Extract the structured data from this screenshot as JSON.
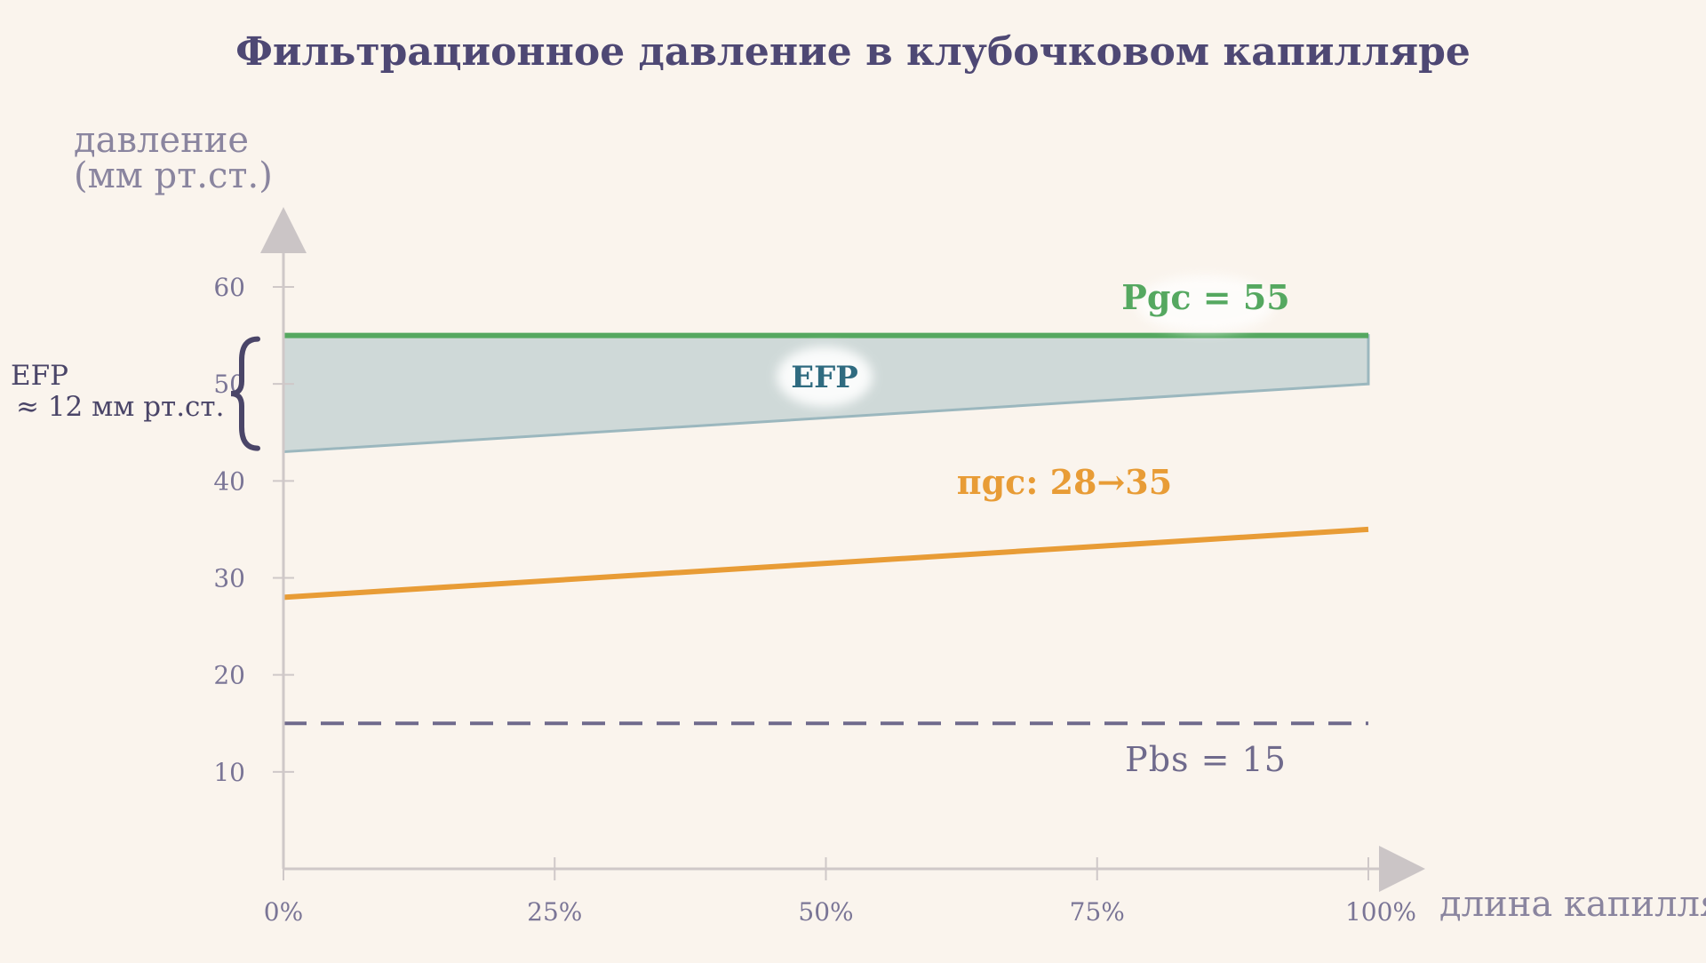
{
  "chart_data": {
    "type": "line",
    "title": "Фильтрационное давление в клубочковом капилляре",
    "ylabel_line1": "давление",
    "ylabel_line2": "(мм рт.ст.)",
    "xlabel": "длина капилляра",
    "x_ticks": [
      "0%",
      "25%",
      "50%",
      "75%",
      "100%"
    ],
    "y_ticks": [
      10,
      20,
      30,
      40,
      50,
      60
    ],
    "ylim": [
      0,
      60
    ],
    "xlim": [
      0,
      100
    ],
    "grid": false,
    "series": [
      {
        "key": "pgc",
        "label": "Pgc = 55",
        "x": [
          0,
          100
        ],
        "y": [
          55,
          55
        ],
        "color": "#55a860",
        "style": "solid"
      },
      {
        "key": "pigc",
        "label": "πgc: 28→35",
        "x": [
          0,
          100
        ],
        "y": [
          28,
          35
        ],
        "color": "#e89c36",
        "style": "solid"
      },
      {
        "key": "pbs",
        "label": "Pbs = 15",
        "x": [
          0,
          100
        ],
        "y": [
          15,
          15
        ],
        "color": "#6f6a8c",
        "style": "dashed"
      }
    ],
    "efp_band": {
      "label": "EFP",
      "upper_y": [
        55,
        55
      ],
      "lower_y": [
        43,
        50
      ],
      "x": [
        0,
        100
      ],
      "fill": "#b5c8cc",
      "border": "#9bb7be",
      "text_color": "#2f6b80"
    },
    "bracket_annotation": {
      "line1": "EFP",
      "line2": "≈ 12 мм рт.ст.",
      "y_range": [
        43,
        55
      ],
      "color": "#4a4568"
    }
  },
  "colors": {
    "title": "#4e4874",
    "axis": "#cfc8c8",
    "arrow": "#cbc5c6",
    "tick_text": "#7a7596",
    "axis_title": "#8a859f"
  }
}
